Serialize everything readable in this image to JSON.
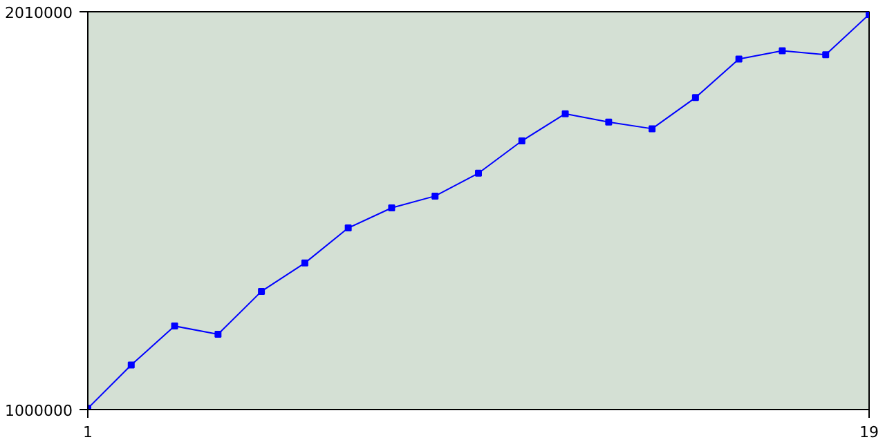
{
  "chart_data": {
    "type": "line",
    "x": [
      1,
      2,
      3,
      4,
      5,
      6,
      7,
      8,
      9,
      10,
      11,
      12,
      13,
      14,
      15,
      16,
      17,
      18,
      19
    ],
    "series": [
      {
        "color": "#0000ff",
        "values": [
          1003000,
          1113000,
          1212000,
          1191000,
          1300000,
          1372000,
          1461000,
          1512000,
          1542000,
          1600000,
          1682000,
          1751000,
          1730000,
          1713000,
          1792000,
          1890000,
          1911000,
          1901000,
          2003000
        ]
      }
    ],
    "xlim": [
      1,
      19
    ],
    "xticks": [
      1,
      19
    ],
    "ylim": [
      1000000,
      2010000
    ],
    "yticks": [
      1000000,
      2010000
    ],
    "marker": "square",
    "line_style": "solid"
  }
}
